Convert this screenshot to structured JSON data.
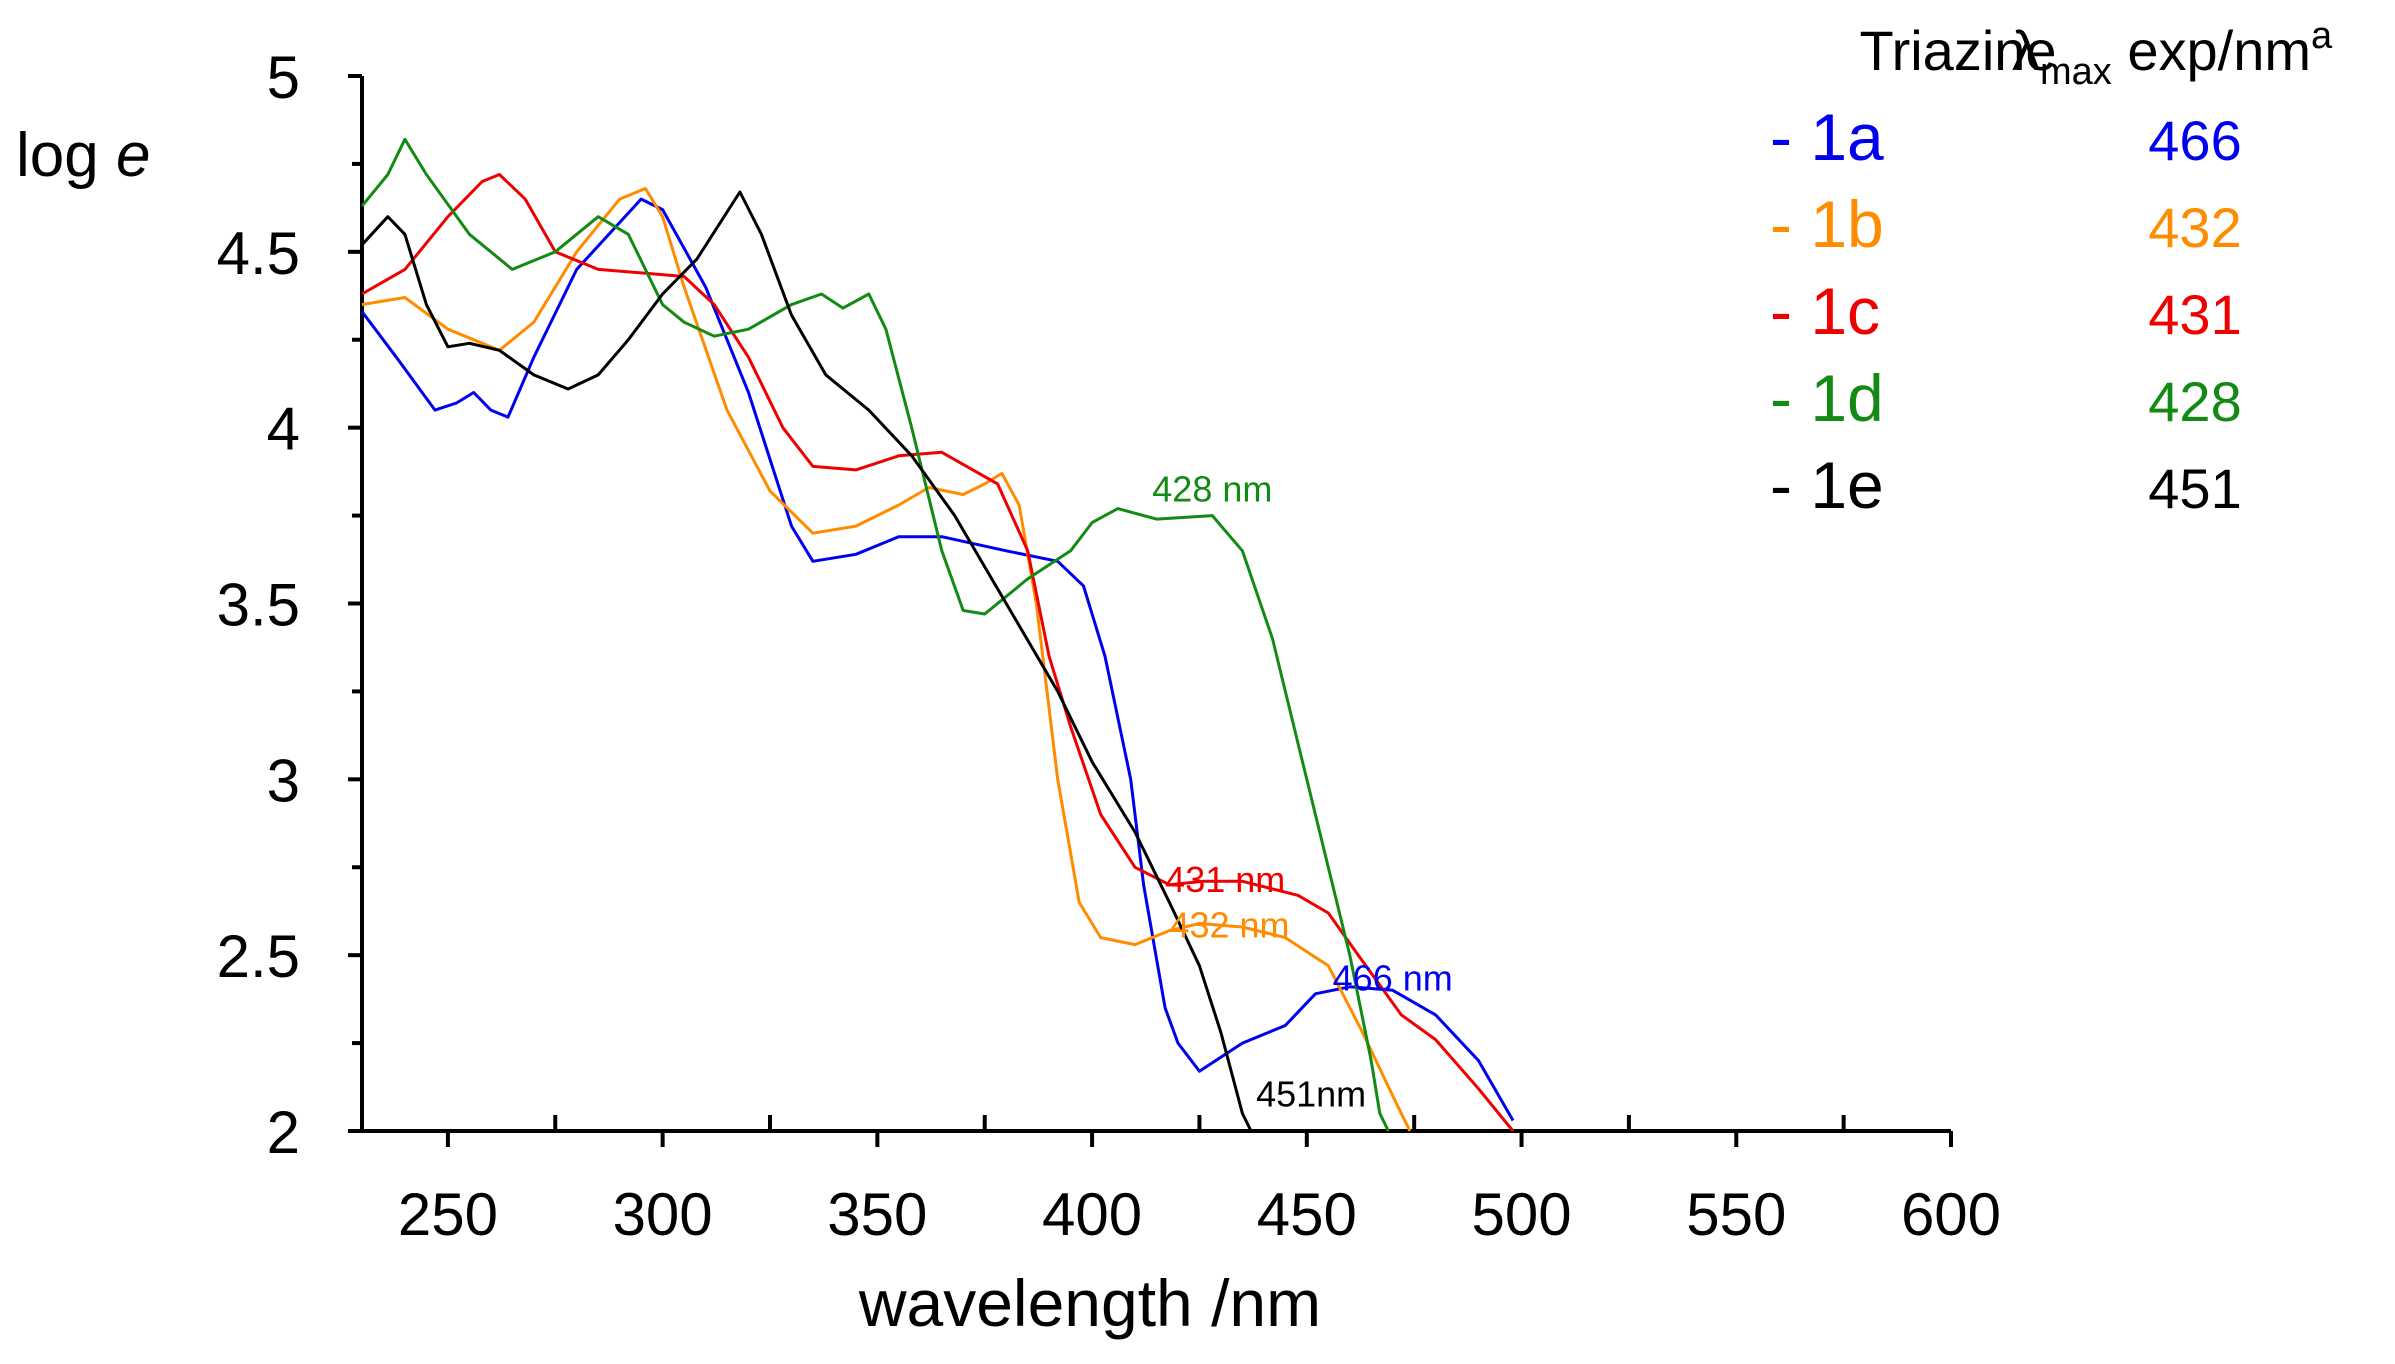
{
  "chart_data": {
    "type": "line",
    "title": "",
    "xlabel": "wavelength /nm",
    "ylabel": "log e",
    "xlim": [
      230,
      600
    ],
    "ylim": [
      2,
      5
    ],
    "x_ticks": [
      250,
      300,
      350,
      400,
      450,
      500,
      550,
      600
    ],
    "y_ticks": [
      2,
      2.5,
      3,
      3.5,
      4,
      4.5,
      5
    ],
    "y_tick_labels": [
      "2",
      "2.5",
      "3",
      "3.5",
      "4",
      "4.5",
      "5"
    ],
    "grid": false,
    "legend": {
      "position": "top-right",
      "header_triazine": "Triazine",
      "header_lambda_base": "λ",
      "header_lambda_sub": "max",
      "header_lambda_rest": " exp/nm",
      "header_lambda_sup": "a"
    },
    "series": [
      {
        "name": "1a",
        "legend_label": "- 1a",
        "lambda_max": "466",
        "color": "#0000ee",
        "peak_label": "466 nm",
        "points": [
          [
            230,
            4.33
          ],
          [
            238,
            4.2
          ],
          [
            247,
            4.05
          ],
          [
            252,
            4.07
          ],
          [
            256,
            4.1
          ],
          [
            260,
            4.05
          ],
          [
            264,
            4.03
          ],
          [
            270,
            4.2
          ],
          [
            280,
            4.45
          ],
          [
            295,
            4.65
          ],
          [
            300,
            4.62
          ],
          [
            310,
            4.4
          ],
          [
            320,
            4.1
          ],
          [
            330,
            3.72
          ],
          [
            335,
            3.62
          ],
          [
            345,
            3.64
          ],
          [
            355,
            3.69
          ],
          [
            365,
            3.69
          ],
          [
            380,
            3.65
          ],
          [
            392,
            3.62
          ],
          [
            398,
            3.55
          ],
          [
            403,
            3.35
          ],
          [
            409,
            3.0
          ],
          [
            412,
            2.7
          ],
          [
            417,
            2.35
          ],
          [
            420,
            2.25
          ],
          [
            425,
            2.17
          ],
          [
            435,
            2.25
          ],
          [
            445,
            2.3
          ],
          [
            452,
            2.39
          ],
          [
            460,
            2.41
          ],
          [
            470,
            2.4
          ],
          [
            480,
            2.33
          ],
          [
            490,
            2.2
          ],
          [
            498,
            2.03
          ]
        ]
      },
      {
        "name": "1b",
        "legend_label": "- 1b",
        "lambda_max": "432",
        "color": "#ff8c00",
        "peak_label": "432 nm",
        "points": [
          [
            230,
            4.35
          ],
          [
            240,
            4.37
          ],
          [
            250,
            4.28
          ],
          [
            262,
            4.22
          ],
          [
            270,
            4.3
          ],
          [
            280,
            4.5
          ],
          [
            290,
            4.65
          ],
          [
            296,
            4.68
          ],
          [
            300,
            4.6
          ],
          [
            305,
            4.4
          ],
          [
            315,
            4.05
          ],
          [
            325,
            3.82
          ],
          [
            335,
            3.7
          ],
          [
            345,
            3.72
          ],
          [
            355,
            3.78
          ],
          [
            362,
            3.83
          ],
          [
            370,
            3.81
          ],
          [
            375,
            3.84
          ],
          [
            379,
            3.87
          ],
          [
            383,
            3.78
          ],
          [
            387,
            3.5
          ],
          [
            392,
            3.0
          ],
          [
            397,
            2.65
          ],
          [
            402,
            2.55
          ],
          [
            410,
            2.53
          ],
          [
            418,
            2.57
          ],
          [
            425,
            2.59
          ],
          [
            435,
            2.58
          ],
          [
            445,
            2.55
          ],
          [
            455,
            2.47
          ],
          [
            463,
            2.28
          ],
          [
            470,
            2.1
          ],
          [
            474,
            2.0
          ]
        ]
      },
      {
        "name": "1c",
        "legend_label": "- 1c",
        "lambda_max": "431",
        "color": "#ee0000",
        "peak_label": "431 nm",
        "points": [
          [
            230,
            4.38
          ],
          [
            240,
            4.45
          ],
          [
            250,
            4.6
          ],
          [
            258,
            4.7
          ],
          [
            262,
            4.72
          ],
          [
            268,
            4.65
          ],
          [
            275,
            4.5
          ],
          [
            285,
            4.45
          ],
          [
            295,
            4.44
          ],
          [
            305,
            4.43
          ],
          [
            312,
            4.35
          ],
          [
            320,
            4.2
          ],
          [
            328,
            4.0
          ],
          [
            335,
            3.89
          ],
          [
            345,
            3.88
          ],
          [
            355,
            3.92
          ],
          [
            365,
            3.93
          ],
          [
            378,
            3.84
          ],
          [
            385,
            3.65
          ],
          [
            390,
            3.35
          ],
          [
            395,
            3.15
          ],
          [
            402,
            2.9
          ],
          [
            410,
            2.75
          ],
          [
            418,
            2.7
          ],
          [
            426,
            2.71
          ],
          [
            435,
            2.71
          ],
          [
            448,
            2.67
          ],
          [
            455,
            2.62
          ],
          [
            462,
            2.5
          ],
          [
            472,
            2.33
          ],
          [
            480,
            2.26
          ],
          [
            490,
            2.12
          ],
          [
            498,
            2.0
          ]
        ]
      },
      {
        "name": "1d",
        "legend_label": "- 1d",
        "lambda_max": "428",
        "color": "#138a13",
        "peak_label": "428 nm",
        "points": [
          [
            230,
            4.63
          ],
          [
            236,
            4.72
          ],
          [
            240,
            4.82
          ],
          [
            245,
            4.72
          ],
          [
            255,
            4.55
          ],
          [
            265,
            4.45
          ],
          [
            275,
            4.5
          ],
          [
            285,
            4.6
          ],
          [
            292,
            4.55
          ],
          [
            300,
            4.35
          ],
          [
            305,
            4.3
          ],
          [
            312,
            4.26
          ],
          [
            320,
            4.28
          ],
          [
            330,
            4.35
          ],
          [
            337,
            4.38
          ],
          [
            342,
            4.34
          ],
          [
            348,
            4.38
          ],
          [
            352,
            4.28
          ],
          [
            358,
            4.0
          ],
          [
            365,
            3.65
          ],
          [
            370,
            3.48
          ],
          [
            375,
            3.47
          ],
          [
            385,
            3.57
          ],
          [
            395,
            3.65
          ],
          [
            400,
            3.73
          ],
          [
            406,
            3.77
          ],
          [
            415,
            3.74
          ],
          [
            428,
            3.75
          ],
          [
            435,
            3.65
          ],
          [
            442,
            3.4
          ],
          [
            448,
            3.1
          ],
          [
            455,
            2.75
          ],
          [
            460,
            2.5
          ],
          [
            465,
            2.2
          ],
          [
            467,
            2.05
          ],
          [
            469,
            2.0
          ]
        ]
      },
      {
        "name": "1e",
        "legend_label": "- 1e",
        "lambda_max": "451",
        "color": "#000000",
        "peak_label": "451nm",
        "points": [
          [
            230,
            4.52
          ],
          [
            236,
            4.6
          ],
          [
            240,
            4.55
          ],
          [
            245,
            4.35
          ],
          [
            250,
            4.23
          ],
          [
            255,
            4.24
          ],
          [
            262,
            4.22
          ],
          [
            270,
            4.15
          ],
          [
            278,
            4.11
          ],
          [
            285,
            4.15
          ],
          [
            292,
            4.25
          ],
          [
            300,
            4.38
          ],
          [
            308,
            4.48
          ],
          [
            318,
            4.67
          ],
          [
            323,
            4.55
          ],
          [
            330,
            4.32
          ],
          [
            338,
            4.15
          ],
          [
            348,
            4.05
          ],
          [
            358,
            3.92
          ],
          [
            368,
            3.75
          ],
          [
            380,
            3.5
          ],
          [
            392,
            3.25
          ],
          [
            400,
            3.05
          ],
          [
            410,
            2.85
          ],
          [
            418,
            2.65
          ],
          [
            425,
            2.47
          ],
          [
            430,
            2.28
          ],
          [
            435,
            2.05
          ],
          [
            437,
            2.0
          ]
        ]
      }
    ]
  }
}
